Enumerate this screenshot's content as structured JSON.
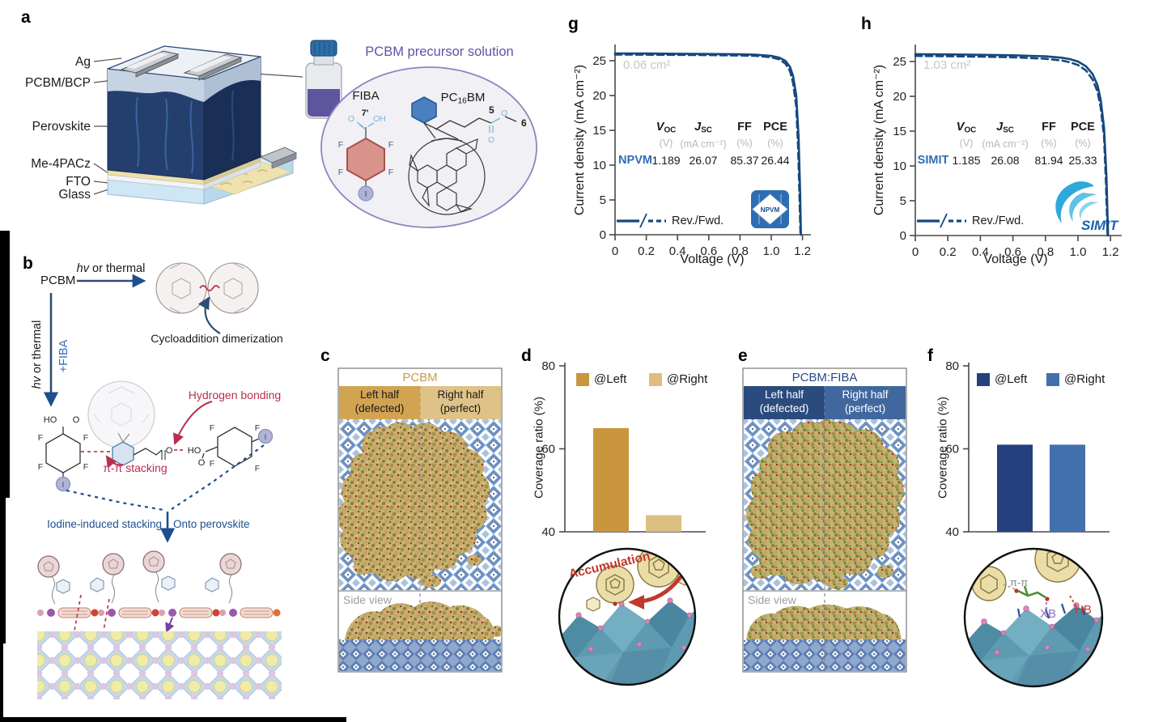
{
  "atoms": {
    "f": "F",
    "i": "I",
    "o": "O",
    "oh": "OH",
    "ho": "HO",
    "seven": "7'",
    "five": "5",
    "six": "6"
  },
  "colors": {
    "curve": "#17477E",
    "gold_dark": "#C9963E",
    "gold_light": "#DCBE81",
    "navy_dark": "#24417E",
    "navy_mid": "#4270AE",
    "accent_red": "#B92D4E",
    "device_blue": "#2F6DB5",
    "gray_label": "#C6C6C6"
  },
  "panel_a": {
    "letter": "a",
    "layers": [
      "Ag",
      "PCBM/BCP",
      "Perovskite",
      "Me-4PACz",
      "FTO",
      "Glass"
    ],
    "solution_title": "PCBM precursor solution",
    "fiba": "FIBA",
    "pcbm_pre": "PC",
    "pcbm_sub": "16",
    "pcbm_post": "BM"
  },
  "panel_b": {
    "letter": "b",
    "pcbm": "PCBM",
    "hv": "hv",
    "or_thermal": " or thermal",
    "plus_fiba": "+FIBA",
    "cycloaddition": "Cycloaddition dimerization",
    "hydrogen_bonding": "Hydrogen bonding",
    "pi_stacking": "π-π stacking",
    "iodine": "Iodine-induced stacking",
    "onto": "Onto perovskite"
  },
  "panel_c": {
    "letter": "c",
    "title": "PCBM",
    "left_1": "Left half",
    "left_2": "(defected)",
    "right_1": "Right half",
    "right_2": "(perfect)",
    "side_view": "Side view"
  },
  "panel_d": {
    "letter": "d",
    "annotation": "Accumulation"
  },
  "panel_e": {
    "letter": "e",
    "title": "PCBM:FIBA",
    "left_1": "Left half",
    "left_2": "(defected)",
    "right_1": "Right half",
    "right_2": "(perfect)",
    "side_view": "Side view"
  },
  "panel_f": {
    "letter": "f",
    "pi_pi": "π-π",
    "xb": "XB",
    "hb": "HB"
  },
  "panel_g": {
    "letter": "g",
    "area_label": "0.06 cm²",
    "ylabel": "Current density (mA cm⁻²)",
    "xlabel": "Voltage (V)",
    "legend": "Rev./Fwd.",
    "logo": "NPVM",
    "table": {
      "voc_sym": "V",
      "voc_sub": "OC",
      "jsc_sym": "J",
      "jsc_sub": "SC",
      "ff": "FF",
      "pce": "PCE",
      "unit_v": "(V)",
      "unit_j": "(mA cm⁻²)",
      "unit_pct": "(%)",
      "unit_pct2": "(%)",
      "device": "NPVM",
      "voc": "1.189",
      "jsc": "26.07",
      "ff_val": "85.37",
      "pce_val": "26.44"
    }
  },
  "panel_h": {
    "letter": "h",
    "area_label": "1.03 cm²",
    "ylabel": "Current density (mA cm⁻²)",
    "xlabel": "Voltage (V)",
    "legend": "Rev./Fwd.",
    "logo": "SIMIT",
    "table": {
      "voc_sym": "V",
      "voc_sub": "OC",
      "jsc_sym": "J",
      "jsc_sub": "SC",
      "ff": "FF",
      "pce": "PCE",
      "unit_v": "(V)",
      "unit_j": "(mA cm⁻²)",
      "unit_pct": "(%)",
      "unit_pct2": "(%)",
      "device": "SIMIT",
      "voc": "1.185",
      "jsc": "26.08",
      "ff_val": "81.94",
      "pce_val": "25.33"
    }
  },
  "chart_data": {
    "d": {
      "type": "bar",
      "categories": [
        "@Left",
        "@Right"
      ],
      "values": [
        65,
        44
      ],
      "colors": [
        "#C9963E",
        "#DCBE81"
      ],
      "ylabel": "Coverage ratio (%)",
      "ylim": [
        40,
        80
      ],
      "yticks": [
        40,
        60,
        80
      ],
      "legend_position": "top"
    },
    "f": {
      "type": "bar",
      "categories": [
        "@Left",
        "@Right"
      ],
      "values": [
        61,
        61
      ],
      "colors": [
        "#24417E",
        "#4270AE"
      ],
      "ylabel": "Coverage ratio (%)",
      "ylim": [
        40,
        80
      ],
      "yticks": [
        40,
        60,
        80
      ],
      "legend_position": "top"
    },
    "g": {
      "type": "line",
      "title": "",
      "xlabel": "Voltage (V)",
      "ylabel": "Current density (mA cm⁻²)",
      "xlim": [
        0,
        1.25
      ],
      "ylim": [
        0,
        27
      ],
      "xticks": [
        "0",
        "0.2",
        "0.4",
        "0.6",
        "0.8",
        "1.0",
        "1.2"
      ],
      "yticks": [
        0,
        5,
        10,
        15,
        20,
        25
      ],
      "area_label": "0.06 cm²",
      "legend": "Rev./Fwd.",
      "device": "NPVM",
      "metrics": {
        "Voc_V": 1.189,
        "Jsc_mA_cm2": 26.07,
        "FF_pct": 85.37,
        "PCE_pct": 26.44
      },
      "series": [
        {
          "name": "Rev.",
          "style": "solid",
          "x": [
            0,
            0.2,
            0.4,
            0.6,
            0.8,
            0.9,
            1.0,
            1.05,
            1.09,
            1.12,
            1.14,
            1.16,
            1.175,
            1.185,
            1.19
          ],
          "y": [
            26.05,
            26.03,
            26.0,
            25.97,
            25.92,
            25.87,
            25.7,
            25.45,
            25.0,
            24.1,
            22.8,
            20.0,
            14.0,
            6.0,
            0
          ]
        },
        {
          "name": "Fwd.",
          "style": "dashed",
          "x": [
            0,
            0.2,
            0.4,
            0.6,
            0.8,
            0.9,
            1.0,
            1.05,
            1.09,
            1.12,
            1.14,
            1.16,
            1.172,
            1.182,
            1.187
          ],
          "y": [
            25.88,
            25.86,
            25.84,
            25.8,
            25.75,
            25.7,
            25.5,
            25.2,
            24.6,
            23.5,
            21.8,
            18.4,
            12.5,
            4.5,
            0
          ]
        }
      ]
    },
    "h": {
      "type": "line",
      "title": "",
      "xlabel": "Voltage (V)",
      "ylabel": "Current density (mA cm⁻²)",
      "xlim": [
        0,
        1.25
      ],
      "ylim": [
        0,
        27
      ],
      "xticks": [
        "0",
        "0.2",
        "0.4",
        "0.6",
        "0.8",
        "1.0",
        "1.2"
      ],
      "yticks": [
        0,
        5,
        10,
        15,
        20,
        25
      ],
      "area_label": "1.03 cm²",
      "legend": "Rev./Fwd.",
      "device": "SIMIT",
      "metrics": {
        "Voc_V": 1.185,
        "Jsc_mA_cm2": 26.08,
        "FF_pct": 81.94,
        "PCE_pct": 25.33
      },
      "series": [
        {
          "name": "Rev.",
          "style": "solid",
          "x": [
            0,
            0.2,
            0.4,
            0.6,
            0.8,
            0.9,
            0.95,
            1.0,
            1.05,
            1.09,
            1.12,
            1.14,
            1.16,
            1.175,
            1.185
          ],
          "y": [
            26.06,
            26.02,
            25.97,
            25.9,
            25.75,
            25.55,
            25.35,
            25.0,
            24.3,
            23.2,
            21.6,
            19.5,
            15.5,
            8.5,
            0
          ]
        },
        {
          "name": "Fwd.",
          "style": "dashed",
          "x": [
            0,
            0.2,
            0.4,
            0.6,
            0.8,
            0.9,
            0.95,
            1.0,
            1.05,
            1.09,
            1.12,
            1.14,
            1.16,
            1.172,
            1.182
          ],
          "y": [
            25.8,
            25.76,
            25.7,
            25.6,
            25.4,
            25.15,
            24.9,
            24.5,
            23.7,
            22.4,
            20.7,
            18.4,
            14.2,
            7.5,
            0
          ]
        }
      ]
    }
  }
}
